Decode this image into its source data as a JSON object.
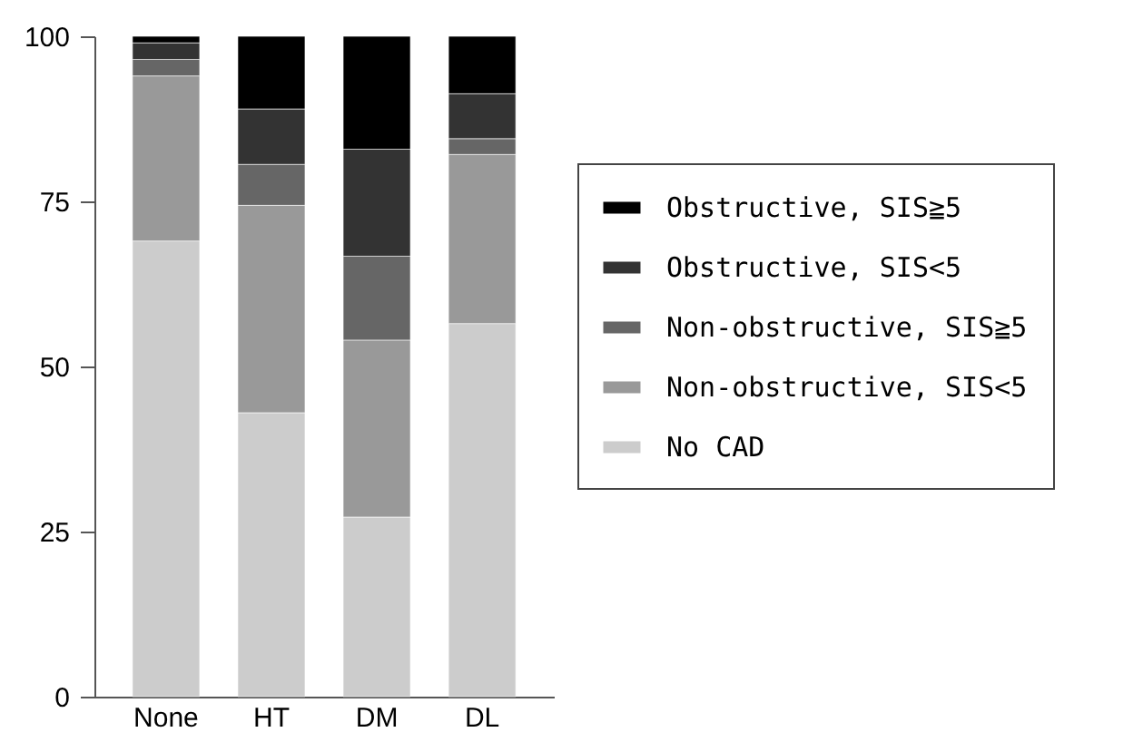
{
  "chart_data": {
    "type": "bar",
    "stacked": true,
    "categories": [
      "None",
      "HT",
      "DM",
      "DL"
    ],
    "series": [
      {
        "name": "No CAD",
        "color": "#cccccc",
        "values": [
          69,
          43,
          27.2,
          56.5
        ]
      },
      {
        "name": "Non-obstructive, SIS<5",
        "color": "#999999",
        "values": [
          25,
          31.4,
          26.8,
          25.6
        ]
      },
      {
        "name": "Non-obstructive, SIS≧5",
        "color": "#666666",
        "values": [
          2.5,
          6.2,
          12.7,
          2.4
        ]
      },
      {
        "name": "Obstructive, SIS<5",
        "color": "#333333",
        "values": [
          2.5,
          8.4,
          16.2,
          6.8
        ]
      },
      {
        "name": "Obstructive, SIS≧5",
        "color": "#000000",
        "values": [
          1,
          11,
          17.1,
          8.7
        ]
      }
    ],
    "ylim": [
      0,
      100
    ],
    "yticks": [
      0,
      25,
      50,
      75,
      100
    ],
    "grid": false,
    "legend": "right"
  }
}
